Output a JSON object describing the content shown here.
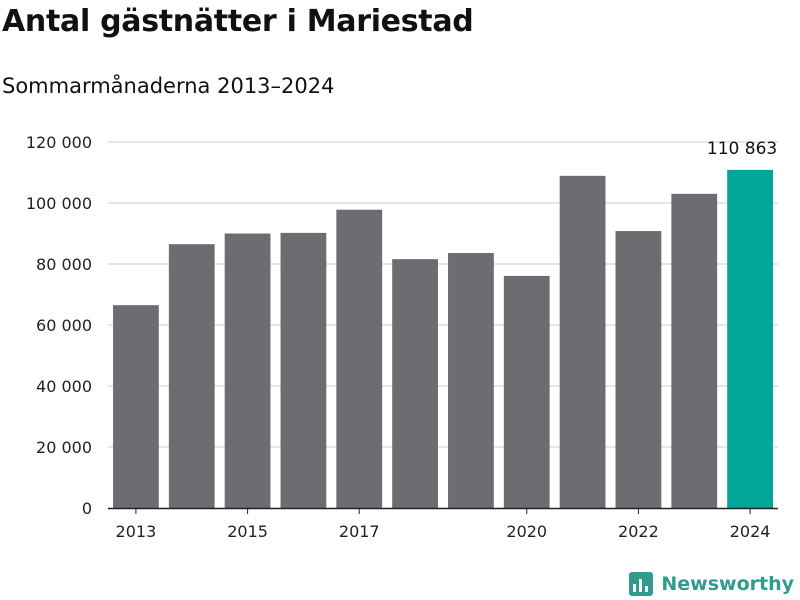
{
  "header": {
    "title": "Antal gästnätter i Mariestad",
    "subtitle": "Sommarmånaderna 2013–2024"
  },
  "brand": {
    "name": "Newsworthy",
    "icon": "bar-chart-logo-icon",
    "color": "#2f9c8f"
  },
  "chart_data": {
    "type": "bar",
    "categories": [
      "2013",
      "2014",
      "2015",
      "2016",
      "2017",
      "2018",
      "2019",
      "2020",
      "2021",
      "2022",
      "2023",
      "2024"
    ],
    "values": [
      66500,
      86500,
      90000,
      90200,
      97800,
      81600,
      83600,
      76100,
      108900,
      90800,
      103000,
      110863
    ],
    "x_tick_labels": [
      "2013",
      "2015",
      "2017",
      "2020",
      "2022",
      "2024"
    ],
    "y_ticks": [
      0,
      20000,
      40000,
      60000,
      80000,
      100000,
      120000
    ],
    "y_tick_labels": [
      "0",
      "20 000",
      "40 000",
      "60 000",
      "80 000",
      "100 000",
      "120 000"
    ],
    "ylim": [
      0,
      120000
    ],
    "highlight_category": "2024",
    "data_labels": [
      {
        "category": "2024",
        "text": "110 863"
      }
    ],
    "grid": true,
    "colors": {
      "bar": "#6d6c70",
      "highlight": "#00a69a",
      "grid": "#dddddd",
      "axis": "#222222"
    }
  }
}
